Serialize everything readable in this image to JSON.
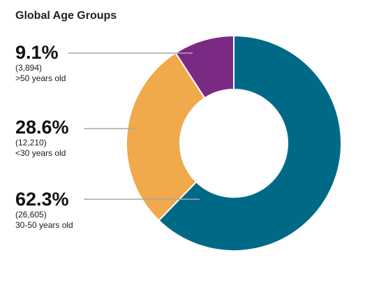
{
  "chart_data": {
    "type": "donut",
    "title": "Global Age Groups",
    "slices": [
      {
        "label": ">50 years old",
        "percent": "9.1%",
        "count": "(3,894)",
        "value": 3894,
        "color": "#7a2a82"
      },
      {
        "label": "<30 years old",
        "percent": "28.6%",
        "count": "(12,210)",
        "value": 12210,
        "color": "#f0a94b"
      },
      {
        "label": "30-50 years old",
        "percent": "62.3%",
        "count": "(26,605)",
        "value": 26605,
        "color": "#006a86"
      }
    ],
    "label_line_color": "#a8a8a8"
  }
}
